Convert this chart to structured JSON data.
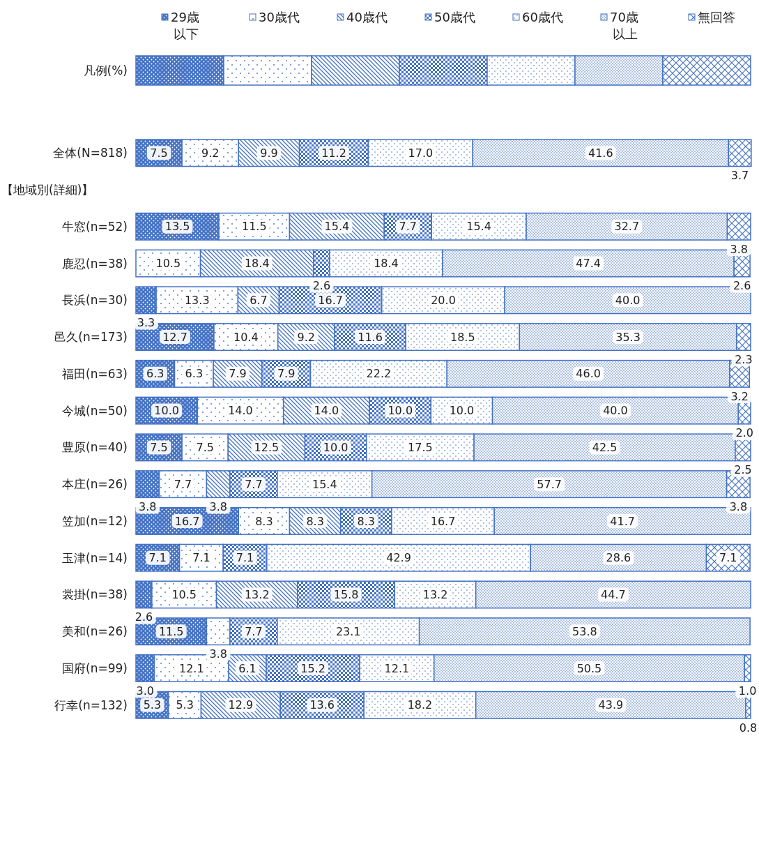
{
  "chart_data": {
    "type": "bar",
    "orientation": "horizontal",
    "stacked": true,
    "legend": "top",
    "legend_title": "凡例(%)",
    "tick_labels": "y",
    "xlim": [
      0,
      100
    ],
    "annotations": [
      "【地域別(詳細)】"
    ],
    "categories": [
      "全体(N=818)",
      null,
      "牛窓(n=52)",
      "鹿忍(n=38)",
      "長浜(n=30)",
      "邑久(n=173)",
      "福田(n=63)",
      "今城(n=50)",
      "豊原(n=40)",
      "本庄(n=26)",
      "笠加(n=12)",
      "玉津(n=14)",
      "裳掛(n=38)",
      "美和(n=26)",
      "国府(n=99)",
      "行幸(n=132)"
    ],
    "series": [
      {
        "name": "29歳以下",
        "color": "#4472c4",
        "values": [
          7.5,
          null,
          13.5,
          null,
          3.3,
          12.7,
          6.3,
          10.0,
          7.5,
          3.8,
          16.7,
          7.1,
          2.6,
          11.5,
          3.0,
          5.3
        ],
        "value_labels": [
          "7.5",
          null,
          "13.5",
          null,
          "3.3",
          "12.7",
          "6.3",
          "10.0",
          "7.5",
          "3.8",
          "16.7",
          "7.1",
          "2.6",
          "11.5",
          "3.0",
          "5.3"
        ]
      },
      {
        "name": "30歳代",
        "color": "#4472c4",
        "values": [
          9.2,
          null,
          11.5,
          10.5,
          13.3,
          10.4,
          6.3,
          14.0,
          7.5,
          7.7,
          8.3,
          7.1,
          10.5,
          3.8,
          12.1,
          5.3
        ],
        "value_labels": [
          "9.2",
          null,
          "11.5",
          "10.5",
          "13.3",
          "10.4",
          "6.3",
          "14.0",
          "7.5",
          "7.7",
          "8.3",
          "7.1",
          "10.5",
          "3.8",
          "12.1",
          "5.3"
        ]
      },
      {
        "name": "40歳代",
        "color": "#4472c4",
        "values": [
          9.9,
          null,
          15.4,
          18.4,
          6.7,
          9.2,
          7.9,
          14.0,
          12.5,
          3.8,
          8.3,
          null,
          13.2,
          null,
          6.1,
          12.9
        ],
        "value_labels": [
          "9.9",
          null,
          "15.4",
          "18.4",
          "6.7",
          "9.2",
          "7.9",
          "14.0",
          "12.5",
          "3.8",
          "8.3",
          null,
          "13.2",
          null,
          "6.1",
          "12.9"
        ]
      },
      {
        "name": "50歳代",
        "color": "#4472c4",
        "values": [
          11.2,
          null,
          7.7,
          2.6,
          16.7,
          11.6,
          7.9,
          10.0,
          10.0,
          7.7,
          8.3,
          7.1,
          15.8,
          7.7,
          15.2,
          13.6
        ],
        "value_labels": [
          "11.2",
          null,
          "7.7",
          "2.6",
          "16.7",
          "11.6",
          "7.9",
          "10.0",
          "10.0",
          "7.7",
          "8.3",
          "7.1",
          "15.8",
          "7.7",
          "15.2",
          "13.6"
        ]
      },
      {
        "name": "60歳代",
        "color": "#4472c4",
        "values": [
          17.0,
          null,
          15.4,
          18.4,
          20.0,
          18.5,
          22.2,
          10.0,
          17.5,
          15.4,
          16.7,
          42.9,
          13.2,
          23.1,
          12.1,
          18.2
        ],
        "value_labels": [
          "17.0",
          null,
          "15.4",
          "18.4",
          "20.0",
          "18.5",
          "22.2",
          "10.0",
          "17.5",
          "15.4",
          "16.7",
          "42.9",
          "13.2",
          "23.1",
          "12.1",
          "18.2"
        ]
      },
      {
        "name": "70歳以上",
        "color": "#4472c4",
        "values": [
          41.6,
          null,
          32.7,
          47.4,
          40.0,
          35.3,
          46.0,
          40.0,
          42.5,
          57.7,
          41.7,
          28.6,
          44.7,
          53.8,
          50.5,
          43.9
        ],
        "value_labels": [
          "41.6",
          null,
          "32.7",
          "47.4",
          "40.0",
          "35.3",
          "46.0",
          "40.0",
          "42.5",
          "57.7",
          "41.7",
          "28.6",
          "44.7",
          "53.8",
          "50.5",
          "43.9"
        ]
      },
      {
        "name": "無回答",
        "color": "#4472c4",
        "values": [
          3.7,
          null,
          3.8,
          2.6,
          null,
          2.3,
          3.2,
          2.0,
          2.5,
          3.8,
          null,
          7.1,
          null,
          null,
          1.0,
          0.8
        ],
        "value_labels": [
          "3.7",
          null,
          "3.8",
          "2.6",
          null,
          "2.3",
          "3.2",
          "2.0",
          "2.5",
          "3.8",
          null,
          "7.1",
          null,
          null,
          "1.0",
          "0.8"
        ]
      }
    ]
  }
}
